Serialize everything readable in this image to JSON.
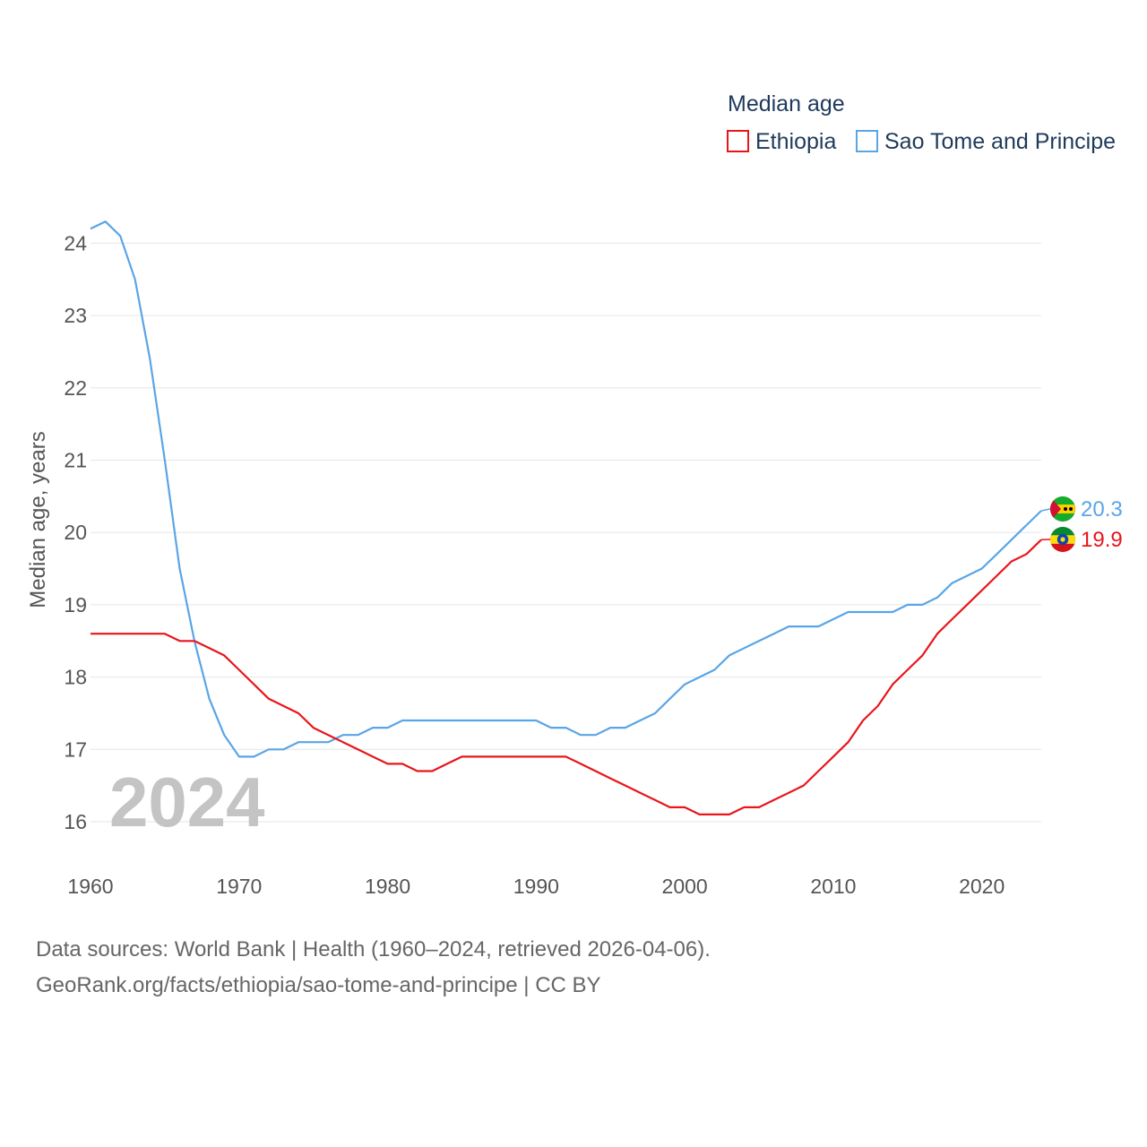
{
  "chart_data": {
    "type": "line",
    "title": "",
    "ylabel": "Median age, years",
    "xlabel": "",
    "xlim": [
      1960,
      2024
    ],
    "ylim": [
      15.5,
      24.5
    ],
    "x_ticks": [
      "1960",
      "1970",
      "1980",
      "1990",
      "2000",
      "2010",
      "2020"
    ],
    "y_ticks": [
      "16",
      "17",
      "18",
      "19",
      "20",
      "21",
      "22",
      "23",
      "24"
    ],
    "grid": true,
    "current_year": "2024",
    "legend": {
      "title": "Median age",
      "placement": "top-right",
      "items": [
        "Ethiopia",
        "Sao Tome and Principe"
      ]
    },
    "x": [
      1960,
      1961,
      1962,
      1963,
      1964,
      1965,
      1966,
      1967,
      1968,
      1969,
      1970,
      1971,
      1972,
      1973,
      1974,
      1975,
      1976,
      1977,
      1978,
      1979,
      1980,
      1981,
      1982,
      1983,
      1984,
      1985,
      1986,
      1987,
      1988,
      1989,
      1990,
      1991,
      1992,
      1993,
      1994,
      1995,
      1996,
      1997,
      1998,
      1999,
      2000,
      2001,
      2002,
      2003,
      2004,
      2005,
      2006,
      2007,
      2008,
      2009,
      2010,
      2011,
      2012,
      2013,
      2014,
      2015,
      2016,
      2017,
      2018,
      2019,
      2020,
      2021,
      2022,
      2023,
      2024
    ],
    "series": [
      {
        "name": "Ethiopia",
        "color": "#e8161b",
        "end_label": "19.9",
        "flag": "ethiopia-flag",
        "values": [
          18.6,
          18.6,
          18.6,
          18.6,
          18.6,
          18.6,
          18.5,
          18.5,
          18.4,
          18.3,
          18.1,
          17.9,
          17.7,
          17.6,
          17.5,
          17.3,
          17.2,
          17.1,
          17.0,
          16.9,
          16.8,
          16.8,
          16.7,
          16.7,
          16.8,
          16.9,
          16.9,
          16.9,
          16.9,
          16.9,
          16.9,
          16.9,
          16.9,
          16.8,
          16.7,
          16.6,
          16.5,
          16.4,
          16.3,
          16.2,
          16.2,
          16.1,
          16.1,
          16.1,
          16.2,
          16.2,
          16.3,
          16.4,
          16.5,
          16.7,
          16.9,
          17.1,
          17.4,
          17.6,
          17.9,
          18.1,
          18.3,
          18.6,
          18.8,
          19.0,
          19.2,
          19.4,
          19.6,
          19.7,
          19.9
        ]
      },
      {
        "name": "Sao Tome and Principe",
        "color": "#5aa5e6",
        "end_label": "20.3",
        "flag": "sao-tome-flag",
        "values": [
          24.2,
          24.3,
          24.1,
          23.5,
          22.4,
          21.0,
          19.5,
          18.5,
          17.7,
          17.2,
          16.9,
          16.9,
          17.0,
          17.0,
          17.1,
          17.1,
          17.1,
          17.2,
          17.2,
          17.3,
          17.3,
          17.4,
          17.4,
          17.4,
          17.4,
          17.4,
          17.4,
          17.4,
          17.4,
          17.4,
          17.4,
          17.3,
          17.3,
          17.2,
          17.2,
          17.3,
          17.3,
          17.4,
          17.5,
          17.7,
          17.9,
          18.0,
          18.1,
          18.3,
          18.4,
          18.5,
          18.6,
          18.7,
          18.7,
          18.7,
          18.8,
          18.9,
          18.9,
          18.9,
          18.9,
          19.0,
          19.0,
          19.1,
          19.3,
          19.4,
          19.5,
          19.7,
          19.9,
          20.1,
          20.3
        ]
      }
    ]
  },
  "source": {
    "line1": "Data sources: World Bank | Health (1960–2024, retrieved 2026-04-06).",
    "line2": "GeoRank.org/facts/ethiopia/sao-tome-and-principe | CC BY"
  }
}
